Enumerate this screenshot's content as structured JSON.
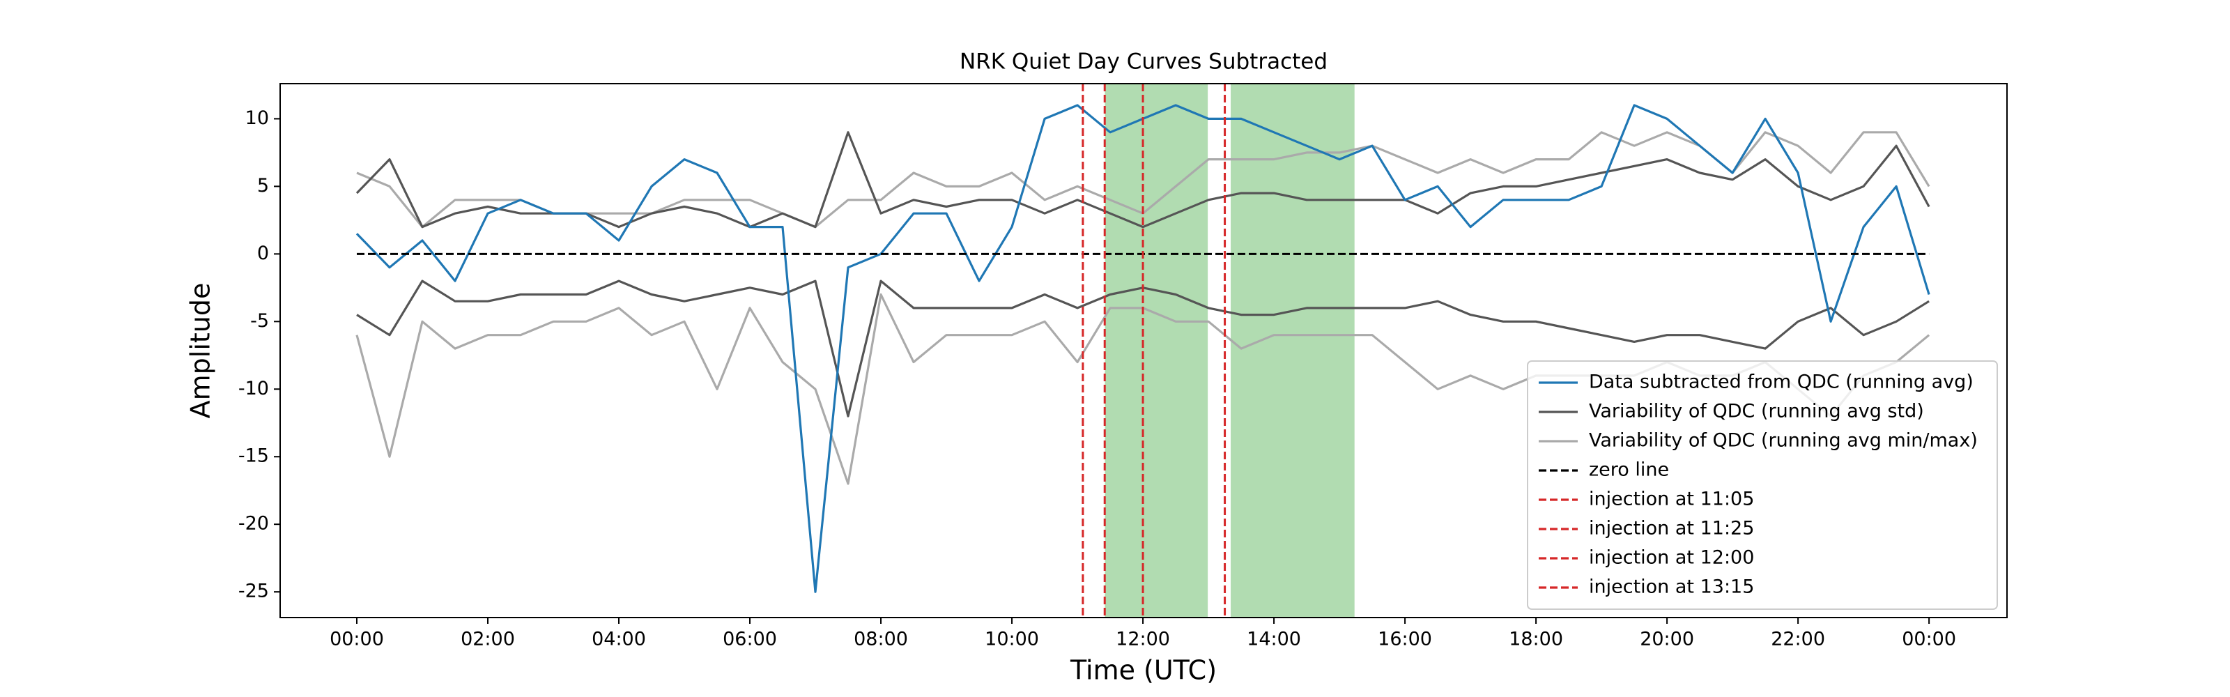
{
  "chart_data": {
    "type": "line",
    "title": "NRK Quiet Day Curves Subtracted",
    "xlabel": "Time (UTC)",
    "ylabel": "Amplitude",
    "x": [
      0,
      0.5,
      1,
      1.5,
      2,
      2.5,
      3,
      3.5,
      4,
      4.5,
      5,
      5.5,
      6,
      6.5,
      7,
      7.5,
      8,
      8.5,
      9,
      9.5,
      10,
      10.5,
      11,
      11.5,
      12,
      12.5,
      13,
      13.5,
      14,
      14.5,
      15,
      15.5,
      16,
      16.5,
      17,
      17.5,
      18,
      18.5,
      19,
      19.5,
      20,
      20.5,
      21,
      21.5,
      22,
      22.5,
      23,
      23.5,
      24
    ],
    "xlim": [
      -1.17,
      25.19
    ],
    "ylim": [
      -26.9,
      12.6
    ],
    "xticks": [
      {
        "value": 0,
        "label": "00:00"
      },
      {
        "value": 2,
        "label": "02:00"
      },
      {
        "value": 4,
        "label": "04:00"
      },
      {
        "value": 6,
        "label": "06:00"
      },
      {
        "value": 8,
        "label": "08:00"
      },
      {
        "value": 10,
        "label": "10:00"
      },
      {
        "value": 12,
        "label": "12:00"
      },
      {
        "value": 14,
        "label": "14:00"
      },
      {
        "value": 16,
        "label": "16:00"
      },
      {
        "value": 18,
        "label": "18:00"
      },
      {
        "value": 20,
        "label": "20:00"
      },
      {
        "value": 22,
        "label": "22:00"
      },
      {
        "value": 24,
        "label": "00:00"
      }
    ],
    "yticks": [
      -25,
      -20,
      -15,
      -10,
      -5,
      0,
      5,
      10
    ],
    "spans": [
      [
        11.42,
        12.99
      ],
      [
        13.34,
        15.23
      ]
    ],
    "span_color": "#2ca02c",
    "legend": "lower right",
    "series": [
      {
        "name": "Data subtracted from QDC (running avg)",
        "color": "#1f77b4",
        "values": [
          1.5,
          -1,
          1,
          -2,
          3,
          4,
          3,
          3,
          1,
          5,
          7,
          6,
          2,
          2,
          -25,
          -1,
          0,
          3,
          3,
          -2,
          2,
          10,
          11,
          9,
          10,
          11,
          10,
          10,
          9,
          8,
          7,
          8,
          4,
          5,
          2,
          4,
          4,
          4,
          5,
          11,
          10,
          8,
          6,
          10,
          6,
          -5,
          2,
          5,
          -3
        ]
      },
      {
        "name": "Variability of QDC (running avg std)",
        "color": "#555555",
        "values": [
          4.5,
          7,
          2,
          3,
          3.5,
          3,
          3,
          3,
          2,
          3,
          3.5,
          3,
          2,
          3,
          2,
          9,
          3,
          4,
          3.5,
          4,
          4,
          3,
          4,
          3,
          2,
          3,
          4,
          4.5,
          4.5,
          4,
          4,
          4,
          4,
          3,
          4.5,
          5,
          5,
          5.5,
          6,
          6.5,
          7,
          6,
          5.5,
          7,
          5,
          4,
          5,
          8,
          3.5
        ],
        "lower_values": [
          -4.5,
          -6,
          -2,
          -3.5,
          -3.5,
          -3,
          -3,
          -3,
          -2,
          -3,
          -3.5,
          -3,
          -2.5,
          -3,
          -2,
          -12,
          -2,
          -4,
          -4,
          -4,
          -4,
          -3,
          -4,
          -3,
          -2.5,
          -3,
          -4,
          -4.5,
          -4.5,
          -4,
          -4,
          -4,
          -4,
          -3.5,
          -4.5,
          -5,
          -5,
          -5.5,
          -6,
          -6.5,
          -6,
          -6,
          -6.5,
          -7,
          -5,
          -4,
          -6,
          -5,
          -3.5
        ]
      },
      {
        "name": "Variability of QDC (running avg min/max)",
        "color": "#aaaaaa",
        "values": [
          6,
          5,
          2,
          4,
          4,
          4,
          3,
          3,
          3,
          3,
          4,
          4,
          4,
          3,
          2,
          4,
          4,
          6,
          5,
          5,
          6,
          4,
          5,
          4,
          3,
          5,
          7,
          7,
          7,
          7.5,
          7.5,
          8,
          7,
          6,
          7,
          6,
          7,
          7,
          9,
          8,
          9,
          8,
          6,
          9,
          8,
          6,
          9,
          9,
          5
        ],
        "lower_values": [
          -6,
          -15,
          -5,
          -7,
          -6,
          -6,
          -5,
          -5,
          -4,
          -6,
          -5,
          -10,
          -4,
          -8,
          -10,
          -17,
          -3,
          -8,
          -6,
          -6,
          -6,
          -5,
          -8,
          -4,
          -4,
          -5,
          -5,
          -7,
          -6,
          -6,
          -6,
          -6,
          -8,
          -10,
          -9,
          -10,
          -9,
          -9,
          -9,
          -9,
          -8,
          -9,
          -9,
          -8,
          -10,
          -12,
          -9,
          -8,
          -6
        ]
      },
      {
        "name": "zero line",
        "color": "#000000",
        "kind": "hline",
        "value": 0
      },
      {
        "name": "injection at 11:05",
        "color": "#d62728",
        "kind": "vline",
        "xvalue": 11.0833
      },
      {
        "name": "injection at 11:25",
        "color": "#d62728",
        "kind": "vline",
        "xvalue": 11.4167
      },
      {
        "name": "injection at 12:00",
        "color": "#d62728",
        "kind": "vline",
        "xvalue": 12
      },
      {
        "name": "injection at 13:15",
        "color": "#d62728",
        "kind": "vline",
        "xvalue": 13.25
      }
    ]
  }
}
